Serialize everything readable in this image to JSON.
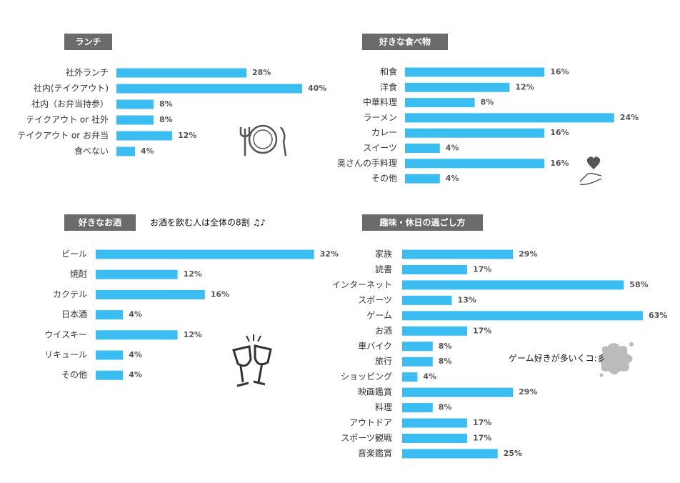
{
  "chart_data": [
    {
      "type": "bar",
      "orientation": "horizontal",
      "title": "ランチ",
      "color": "#3cbdf2",
      "categories": [
        "社外ランチ",
        "社内(テイクアウト)",
        "社内（お弁当持参）",
        "テイクアウト or 社外",
        "テイクアウト or お弁当",
        "食べない"
      ],
      "values": [
        28,
        40,
        8,
        8,
        12,
        4
      ],
      "value_labels": [
        "28%",
        "40%",
        "8%",
        "8%",
        "12%",
        "4%"
      ]
    },
    {
      "type": "bar",
      "orientation": "horizontal",
      "title": "好きな食べ物",
      "color": "#3cbdf2",
      "categories": [
        "和食",
        "洋食",
        "中華料理",
        "ラーメン",
        "カレー",
        "スイーツ",
        "奥さんの手料理",
        "その他"
      ],
      "values": [
        16,
        12,
        8,
        24,
        16,
        4,
        16,
        4
      ],
      "value_labels": [
        "16%",
        "12%",
        "8%",
        "24%",
        "16%",
        "4%",
        "16%",
        "4%"
      ]
    },
    {
      "type": "bar",
      "orientation": "horizontal",
      "title": "好きなお酒",
      "color": "#3cbdf2",
      "annotation": "お酒を飲む人は全体の8割 ♫♪",
      "categories": [
        "ビール",
        "焼酎",
        "カクテル",
        "日本酒",
        "ウイスキー",
        "リキュール",
        "その他"
      ],
      "values": [
        32,
        12,
        16,
        4,
        12,
        4,
        4
      ],
      "value_labels": [
        "32%",
        "12%",
        "16%",
        "4%",
        "12%",
        "4%",
        "4%"
      ]
    },
    {
      "type": "bar",
      "orientation": "horizontal",
      "title": "趣味・休日の過ごし方",
      "color": "#3cbdf2",
      "annotation": "ゲーム好きが多いくコ:彡",
      "categories": [
        "家族",
        "読書",
        "インターネット",
        "スポーツ",
        "ゲーム",
        "お酒",
        "車バイク",
        "旅行",
        "ショッピング",
        "映画鑑賞",
        "料理",
        "アウトドア",
        "スポーツ観戦",
        "音楽鑑賞"
      ],
      "values": [
        29,
        17,
        58,
        13,
        63,
        17,
        8,
        8,
        4,
        29,
        8,
        17,
        17,
        25
      ],
      "value_labels": [
        "29%",
        "17%",
        "58%",
        "13%",
        "63%",
        "17%",
        "8%",
        "8%",
        "4%",
        "29%",
        "8%",
        "17%",
        "17%",
        "25%"
      ]
    }
  ]
}
